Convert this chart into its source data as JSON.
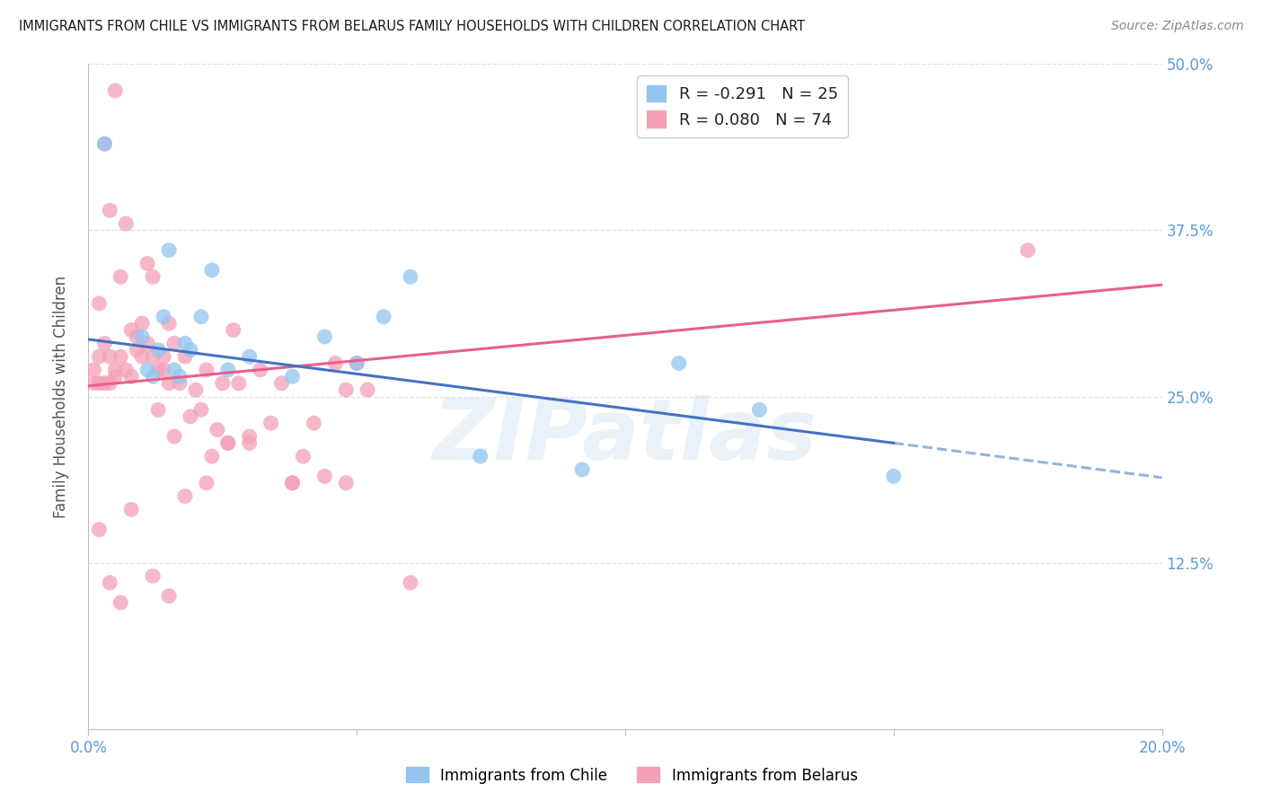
{
  "title": "IMMIGRANTS FROM CHILE VS IMMIGRANTS FROM BELARUS FAMILY HOUSEHOLDS WITH CHILDREN CORRELATION CHART",
  "source": "Source: ZipAtlas.com",
  "ylabel": "Family Households with Children",
  "xlim": [
    0.0,
    0.2
  ],
  "ylim": [
    0.0,
    0.5
  ],
  "bg_color": "#ffffff",
  "chile_color": "#92C5F0",
  "belarus_color": "#F4A0B8",
  "chile_line_color": "#4472C4",
  "belarus_line_color": "#E8608A",
  "watermark": "ZIPatlas",
  "legend_R_chile": "R = -0.291",
  "legend_N_chile": "N = 25",
  "legend_R_belarus": "R = 0.080",
  "legend_N_belarus": "N = 74",
  "grid_color": "#e0e0e0",
  "chile_line_intercept": 0.293,
  "chile_line_slope": -0.52,
  "belarus_line_intercept": 0.258,
  "belarus_line_slope": 0.38,
  "chile_x": [
    0.003,
    0.01,
    0.011,
    0.012,
    0.013,
    0.014,
    0.015,
    0.016,
    0.017,
    0.018,
    0.019,
    0.021,
    0.023,
    0.026,
    0.03,
    0.038,
    0.044,
    0.05,
    0.055,
    0.06,
    0.073,
    0.092,
    0.11,
    0.125,
    0.15
  ],
  "chile_y": [
    0.44,
    0.295,
    0.27,
    0.265,
    0.285,
    0.31,
    0.36,
    0.27,
    0.265,
    0.29,
    0.285,
    0.31,
    0.345,
    0.27,
    0.28,
    0.265,
    0.295,
    0.275,
    0.31,
    0.34,
    0.205,
    0.195,
    0.275,
    0.24,
    0.19
  ],
  "belarus_x": [
    0.001,
    0.001,
    0.002,
    0.002,
    0.002,
    0.003,
    0.003,
    0.003,
    0.004,
    0.004,
    0.004,
    0.005,
    0.005,
    0.005,
    0.006,
    0.006,
    0.007,
    0.007,
    0.008,
    0.008,
    0.009,
    0.009,
    0.01,
    0.01,
    0.011,
    0.011,
    0.012,
    0.012,
    0.013,
    0.013,
    0.014,
    0.014,
    0.015,
    0.015,
    0.016,
    0.016,
    0.017,
    0.018,
    0.019,
    0.02,
    0.021,
    0.022,
    0.023,
    0.024,
    0.025,
    0.026,
    0.027,
    0.028,
    0.03,
    0.032,
    0.034,
    0.036,
    0.038,
    0.04,
    0.042,
    0.044,
    0.046,
    0.048,
    0.05,
    0.052,
    0.002,
    0.004,
    0.006,
    0.008,
    0.012,
    0.015,
    0.018,
    0.022,
    0.026,
    0.03,
    0.038,
    0.048,
    0.06,
    0.175
  ],
  "belarus_y": [
    0.26,
    0.27,
    0.28,
    0.26,
    0.32,
    0.26,
    0.29,
    0.44,
    0.26,
    0.39,
    0.28,
    0.265,
    0.27,
    0.48,
    0.28,
    0.34,
    0.27,
    0.38,
    0.265,
    0.3,
    0.285,
    0.295,
    0.305,
    0.28,
    0.35,
    0.29,
    0.34,
    0.28,
    0.27,
    0.24,
    0.27,
    0.28,
    0.26,
    0.305,
    0.29,
    0.22,
    0.26,
    0.28,
    0.235,
    0.255,
    0.24,
    0.27,
    0.205,
    0.225,
    0.26,
    0.215,
    0.3,
    0.26,
    0.215,
    0.27,
    0.23,
    0.26,
    0.185,
    0.205,
    0.23,
    0.19,
    0.275,
    0.255,
    0.275,
    0.255,
    0.15,
    0.11,
    0.095,
    0.165,
    0.115,
    0.1,
    0.175,
    0.185,
    0.215,
    0.22,
    0.185,
    0.185,
    0.11,
    0.36
  ]
}
